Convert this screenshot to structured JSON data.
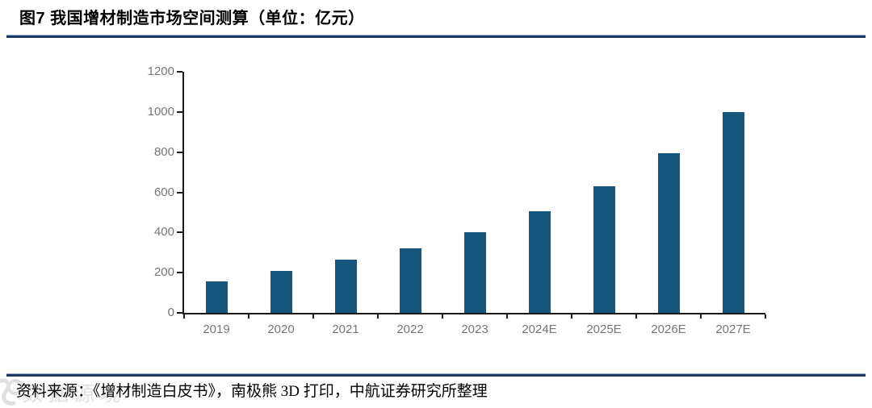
{
  "title": "图7 我国增材制造市场空间测算（单位：亿元）",
  "source_note": "资料来源：《增材制造白皮书》，南极熊 3D 打印，中航证券研究所整理",
  "watermark": {
    "text": "数据源境"
  },
  "colors": {
    "bar": "#16567E",
    "rule": "#1F3864",
    "axis": "#1A1A1A",
    "tick_label": "#767676",
    "title_text": "#000000"
  },
  "chart_data": {
    "type": "bar",
    "title": "图7 我国增材制造市场空间测算（单位：亿元）",
    "categories": [
      "2019",
      "2020",
      "2021",
      "2022",
      "2023",
      "2024E",
      "2025E",
      "2026E",
      "2027E"
    ],
    "values": [
      155,
      208,
      265,
      320,
      400,
      505,
      630,
      795,
      1000
    ],
    "xlabel": "",
    "ylabel": "",
    "ylim": [
      0,
      1200
    ],
    "yticks": [
      0,
      200,
      400,
      600,
      800,
      1000,
      1200
    ],
    "grid": false,
    "legend": false
  }
}
